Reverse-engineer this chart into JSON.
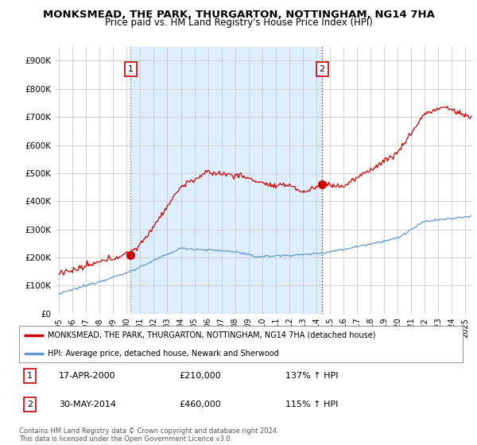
{
  "title": "MONKSMEAD, THE PARK, THURGARTON, NOTTINGHAM, NG14 7HA",
  "subtitle": "Price paid vs. HM Land Registry's House Price Index (HPI)",
  "ylabel_ticks": [
    "£0",
    "£100K",
    "£200K",
    "£300K",
    "£400K",
    "£500K",
    "£600K",
    "£700K",
    "£800K",
    "£900K"
  ],
  "ytick_values": [
    0,
    100000,
    200000,
    300000,
    400000,
    500000,
    600000,
    700000,
    800000,
    900000
  ],
  "ylim": [
    0,
    950000
  ],
  "xlim_start": 1994.7,
  "xlim_end": 2025.5,
  "red_color": "#cc0000",
  "blue_color": "#6699cc",
  "grid_color": "#cccccc",
  "shade_color": "#ddeeff",
  "background_color": "#ffffff",
  "marker1_x": 2000.3,
  "marker1_y": 210000,
  "marker2_x": 2014.42,
  "marker2_y": 460000,
  "vline1_x": 2000.3,
  "vline2_x": 2014.42,
  "legend_line1": "MONKSMEAD, THE PARK, THURGARTON, NOTTINGHAM, NG14 7HA (detached house)",
  "legend_line2": "HPI: Average price, detached house, Newark and Sherwood",
  "table_row1": [
    "1",
    "17-APR-2000",
    "£210,000",
    "137% ↑ HPI"
  ],
  "table_row2": [
    "2",
    "30-MAY-2014",
    "£460,000",
    "115% ↑ HPI"
  ],
  "footer": "Contains HM Land Registry data © Crown copyright and database right 2024.\nThis data is licensed under the Open Government Licence v3.0.",
  "title_fontsize": 9.5,
  "subtitle_fontsize": 8.5,
  "tick_fontsize": 7.5,
  "legend_fontsize": 8
}
